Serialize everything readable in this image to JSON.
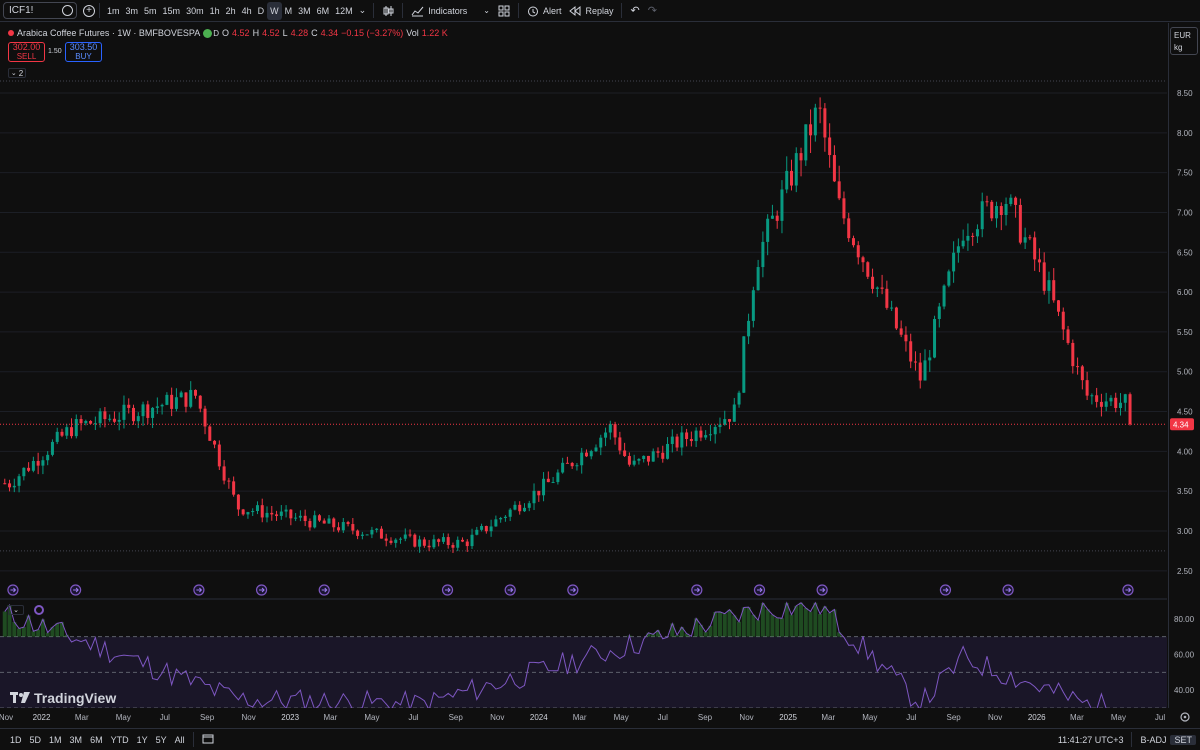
{
  "toolbar": {
    "symbol": "ICF1!",
    "intervals": [
      "1m",
      "3m",
      "5m",
      "15m",
      "30m",
      "1h",
      "2h",
      "4h",
      "D",
      "W",
      "M",
      "3M",
      "6M",
      "12M"
    ],
    "active_interval": "W",
    "indicators_label": "Indicators",
    "alert_label": "Alert",
    "replay_label": "Replay"
  },
  "legend": {
    "title": "Arabica Coffee Futures · 1W · BMFBOVESPA",
    "badge": "D",
    "open_label": "O",
    "open": "4.52",
    "high_label": "H",
    "high": "4.52",
    "low_label": "L",
    "low": "4.28",
    "close_label": "C",
    "close": "4.34",
    "change": "−0.15 (−3.27%)",
    "vol_label": "Vol",
    "vol": "1.22 K"
  },
  "trade": {
    "sell_price": "302.00",
    "sell_label": "SELL",
    "spread": "1.50",
    "buy_price": "303.50",
    "buy_label": "BUY",
    "collapse_count": "2"
  },
  "price_axis": {
    "currency": "EUR",
    "unit": "kg",
    "ticks": [
      "8.50",
      "8.00",
      "7.50",
      "7.00",
      "6.50",
      "6.00",
      "5.50",
      "5.00",
      "4.50",
      "4.00",
      "3.50",
      "3.00",
      "2.50"
    ],
    "last_price": "4.34"
  },
  "rsi_axis": {
    "ticks": [
      "80.00",
      "60.00",
      "40.00"
    ]
  },
  "time_axis": {
    "labels": [
      "Nov",
      "2022",
      "Mar",
      "May",
      "Jul",
      "Sep",
      "Nov",
      "2023",
      "Mar",
      "May",
      "Jul",
      "Sep",
      "Nov",
      "2024",
      "Mar",
      "May",
      "Jul",
      "Sep",
      "Nov",
      "2025",
      "Mar",
      "May",
      "Jul",
      "Sep",
      "Nov",
      "2026",
      "Mar",
      "May",
      "Jul"
    ]
  },
  "bottombar": {
    "ranges": [
      "1D",
      "5D",
      "1M",
      "3M",
      "6M",
      "YTD",
      "1Y",
      "5Y",
      "All"
    ],
    "time": "11:41:27 UTC+3",
    "adj": "B-ADJ",
    "session": "SET"
  },
  "branding": {
    "logo_text": "TradingView"
  },
  "colors": {
    "up": "#089981",
    "down": "#f23645",
    "rsi": "#7e57c2",
    "background": "#0f0f0f"
  },
  "chart_data": {
    "type": "candlestick",
    "interval": "weekly",
    "x_range": [
      "2021-11",
      "2026-07"
    ],
    "ylim": [
      2.3,
      8.75
    ],
    "key_points": [
      {
        "date": "2021-11",
        "close": 3.6
      },
      {
        "date": "2022-02",
        "close": 4.3
      },
      {
        "date": "2022-08",
        "close": 4.7
      },
      {
        "date": "2022-10",
        "close": 3.3
      },
      {
        "date": "2023-07",
        "close": 2.85
      },
      {
        "date": "2023-09",
        "close": 2.85
      },
      {
        "date": "2024-01",
        "close": 3.6
      },
      {
        "date": "2024-04",
        "close": 4.3
      },
      {
        "date": "2024-05",
        "close": 3.8
      },
      {
        "date": "2024-10",
        "close": 4.5
      },
      {
        "date": "2024-11",
        "close": 6.4
      },
      {
        "date": "2025-02",
        "close": 8.3
      },
      {
        "date": "2025-03",
        "close": 7.1
      },
      {
        "date": "2025-07",
        "close": 4.9
      },
      {
        "date": "2025-09",
        "close": 6.8
      },
      {
        "date": "2025-11",
        "close": 7.2
      },
      {
        "date": "2026-01",
        "close": 6.1
      },
      {
        "date": "2026-03",
        "close": 4.7
      },
      {
        "date": "2026-05",
        "close": 4.6
      },
      {
        "date": "2026-05",
        "close": 4.34
      }
    ],
    "last": {
      "open": 4.52,
      "high": 4.52,
      "low": 4.28,
      "close": 4.34
    },
    "rsi": {
      "ylim": [
        30,
        90
      ],
      "levels": [
        70,
        50,
        30
      ],
      "key_points": [
        {
          "date": "2021-11",
          "value": 82
        },
        {
          "date": "2022-03",
          "value": 66
        },
        {
          "date": "2022-10",
          "value": 35
        },
        {
          "date": "2023-07",
          "value": 32
        },
        {
          "date": "2024-04",
          "value": 62
        },
        {
          "date": "2024-11",
          "value": 85
        },
        {
          "date": "2025-02",
          "value": 88
        },
        {
          "date": "2025-07",
          "value": 32
        },
        {
          "date": "2025-09",
          "value": 58
        },
        {
          "date": "2026-03",
          "value": 32
        },
        {
          "date": "2026-05",
          "value": 30
        }
      ]
    }
  }
}
